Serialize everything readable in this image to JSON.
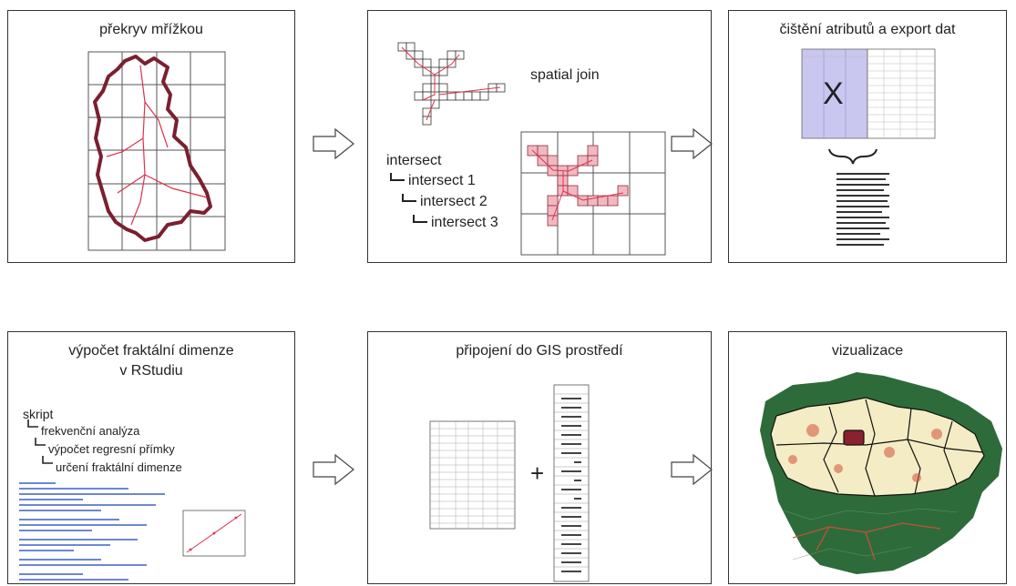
{
  "panels": {
    "p1": {
      "title": "překryv mřížkou"
    },
    "p2": {
      "title": "spatial join",
      "intersect": "intersect",
      "intersect_1": "intersect 1",
      "intersect_2": "intersect 2",
      "intersect_3": "intersect 3"
    },
    "p3": {
      "title": "čištění atributů a export dat",
      "mark": "X"
    },
    "p4": {
      "title_line1": "výpočet fraktální dimenze",
      "title_line2": "v RStudiu",
      "skript": "skript",
      "step_1": "frekvenční analýza",
      "step_2": "výpočet regresní přímky",
      "step_3": "určení fraktální dimenze"
    },
    "p5": {
      "title": "připojení do GIS prostředí",
      "plus": "+"
    },
    "p6": {
      "title": "vizualizace"
    }
  },
  "colors": {
    "outline": "#7a2030",
    "red_line": "#e0304a",
    "pink_cell": "#f2b8c0",
    "lavender": "#c9c6f0",
    "map_green": "#2e6b3a",
    "map_cream": "#f4ecc4"
  },
  "icons": {
    "arrow": "hollow-right-arrow-icon",
    "brace": "curly-brace-icon"
  }
}
